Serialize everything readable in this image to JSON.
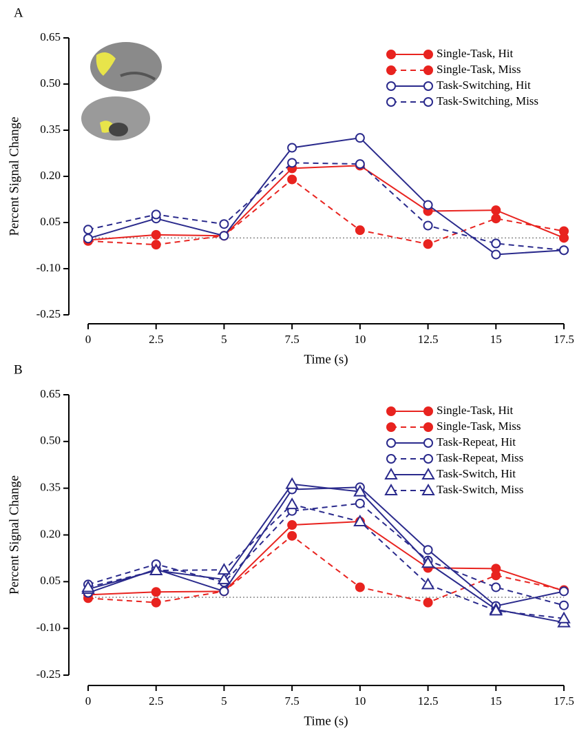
{
  "chart_data": [
    {
      "type": "line",
      "label": "A",
      "xlabel": "Time (s)",
      "ylabel": "Percent Signal Change",
      "x": [
        0,
        2.5,
        5,
        7.5,
        10,
        12.5,
        15,
        17.5
      ],
      "xlim": [
        0,
        17.5
      ],
      "xticks": [
        0,
        2.5,
        5,
        7.5,
        10,
        12.5,
        15,
        17.5
      ],
      "ylim": [
        -0.25,
        0.65
      ],
      "yticks": [
        -0.25,
        {
          "value": -0.1,
          "label": "-0.10"
        },
        0.05,
        {
          "value": 0.2,
          "label": "0.20"
        },
        0.35,
        {
          "value": 0.5,
          "label": "0.50"
        },
        0.65
      ],
      "series": [
        {
          "name": "Single-Task, Hit",
          "color": "#e8231f",
          "dashed": false,
          "marker": "circle",
          "filled": true,
          "values": [
            -0.007,
            0.01,
            0.007,
            0.226,
            0.235,
            0.087,
            0.09,
            0.0
          ]
        },
        {
          "name": "Single-Task, Miss",
          "color": "#e8231f",
          "dashed": true,
          "marker": "circle",
          "filled": true,
          "values": [
            -0.01,
            -0.022,
            0.007,
            0.19,
            0.025,
            -0.02,
            0.063,
            0.022
          ]
        },
        {
          "name": "Task-Switching, Hit",
          "color": "#2a2a8c",
          "dashed": false,
          "marker": "circle",
          "filled": false,
          "values": [
            -0.002,
            0.063,
            0.007,
            0.293,
            0.325,
            0.107,
            -0.054,
            -0.04
          ]
        },
        {
          "name": "Task-Switching, Miss",
          "color": "#2a2a8c",
          "dashed": true,
          "marker": "circle",
          "filled": false,
          "values": [
            0.027,
            0.076,
            0.045,
            0.244,
            0.24,
            0.04,
            -0.018,
            -0.04
          ]
        }
      ]
    },
    {
      "type": "line",
      "label": "B",
      "xlabel": "Time (s)",
      "ylabel": "Percent Signal Change",
      "x": [
        0,
        2.5,
        5,
        7.5,
        10,
        12.5,
        15,
        17.5
      ],
      "xlim": [
        0,
        17.5
      ],
      "xticks": [
        0,
        2.5,
        5,
        7.5,
        10,
        12.5,
        15,
        17.5
      ],
      "ylim": [
        -0.25,
        0.65
      ],
      "yticks": [
        -0.25,
        {
          "value": -0.1,
          "label": "-0.10"
        },
        0.05,
        {
          "value": 0.2,
          "label": "0.20"
        },
        0.35,
        {
          "value": 0.5,
          "label": "0.50"
        },
        0.65
      ],
      "series": [
        {
          "name": "Single-Task, Hit",
          "color": "#e8231f",
          "dashed": false,
          "marker": "circle",
          "filled": true,
          "values": [
            0.008,
            0.017,
            0.019,
            0.232,
            0.243,
            0.094,
            0.092,
            0.02
          ]
        },
        {
          "name": "Single-Task, Miss",
          "color": "#e8231f",
          "dashed": true,
          "marker": "circle",
          "filled": true,
          "values": [
            -0.003,
            -0.017,
            0.019,
            0.197,
            0.032,
            -0.017,
            0.07,
            0.023
          ]
        },
        {
          "name": "Task-Repeat, Hit",
          "color": "#2a2a8c",
          "dashed": false,
          "marker": "circle",
          "filled": false,
          "values": [
            0.014,
            0.09,
            0.019,
            0.346,
            0.353,
            0.152,
            -0.028,
            0.019
          ]
        },
        {
          "name": "Task-Repeat, Miss",
          "color": "#2a2a8c",
          "dashed": true,
          "marker": "circle",
          "filled": false,
          "values": [
            0.041,
            0.106,
            0.048,
            0.277,
            0.301,
            0.118,
            0.032,
            -0.026
          ]
        },
        {
          "name": "Task-Switch, Hit",
          "color": "#2a2a8c",
          "dashed": false,
          "marker": "triangle",
          "filled": false,
          "values": [
            0.026,
            0.086,
            0.057,
            0.363,
            0.339,
            0.11,
            -0.039,
            -0.081
          ]
        },
        {
          "name": "Task-Switch, Miss",
          "color": "#2a2a8c",
          "dashed": true,
          "marker": "triangle",
          "filled": false,
          "values": [
            0.032,
            0.086,
            0.088,
            0.298,
            0.243,
            0.041,
            -0.043,
            -0.068
          ]
        }
      ]
    }
  ]
}
